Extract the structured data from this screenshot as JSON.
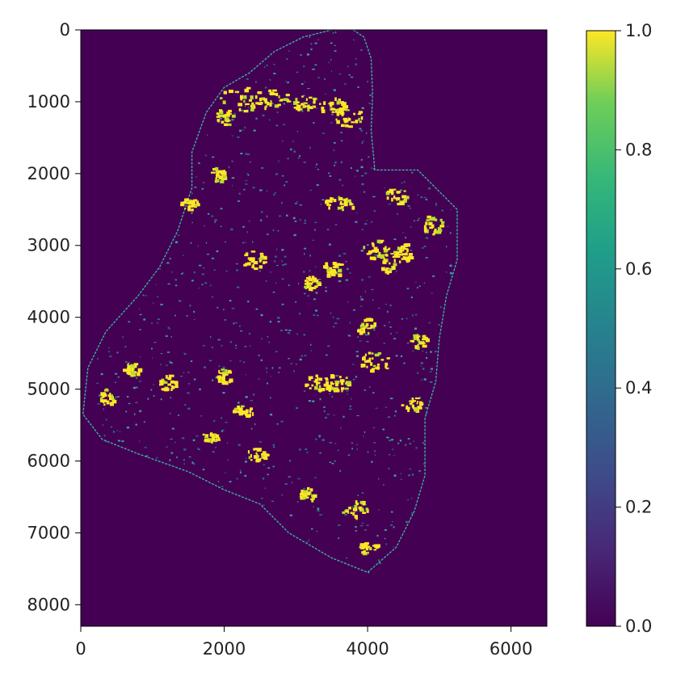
{
  "chart_data": {
    "type": "heatmap",
    "title": "",
    "xlabel": "",
    "ylabel": "",
    "x_range": [
      0,
      6500
    ],
    "y_range": [
      8300,
      0
    ],
    "x_ticks": [
      "0",
      "2000",
      "4000",
      "6000"
    ],
    "y_ticks": [
      "0",
      "1000",
      "2000",
      "3000",
      "4000",
      "5000",
      "6000",
      "7000",
      "8000"
    ],
    "colorbar": {
      "range": [
        0.0,
        1.0
      ],
      "ticks": [
        "0.0",
        "0.2",
        "0.4",
        "0.6",
        "0.8",
        "1.0"
      ],
      "colormap": "viridis"
    },
    "background_value": 0.0,
    "highlight_value": 1.0,
    "colors": {
      "low": "#440154",
      "edge": "#3fb8a4",
      "high": "#fde725"
    },
    "region_outline": [
      [
        3800,
        0
      ],
      [
        3950,
        100
      ],
      [
        4050,
        400
      ],
      [
        4070,
        900
      ],
      [
        4050,
        1400
      ],
      [
        4100,
        1950
      ],
      [
        4700,
        1950
      ],
      [
        4950,
        2200
      ],
      [
        5250,
        2500
      ],
      [
        5250,
        3200
      ],
      [
        5100,
        3700
      ],
      [
        5000,
        4300
      ],
      [
        4950,
        4900
      ],
      [
        4800,
        5400
      ],
      [
        4800,
        6200
      ],
      [
        4650,
        6700
      ],
      [
        4400,
        7200
      ],
      [
        4000,
        7550
      ],
      [
        3500,
        7350
      ],
      [
        2900,
        7000
      ],
      [
        2500,
        6600
      ],
      [
        2000,
        6400
      ],
      [
        1500,
        6150
      ],
      [
        800,
        5900
      ],
      [
        300,
        5700
      ],
      [
        30,
        5350
      ],
      [
        100,
        4700
      ],
      [
        350,
        4200
      ],
      [
        800,
        3700
      ],
      [
        1100,
        3300
      ],
      [
        1350,
        2800
      ],
      [
        1550,
        2200
      ],
      [
        1550,
        1700
      ],
      [
        1750,
        1150
      ],
      [
        2000,
        800
      ],
      [
        2350,
        600
      ],
      [
        2700,
        300
      ],
      [
        3100,
        100
      ],
      [
        3500,
        0
      ]
    ],
    "hotspots": [
      [
        2250,
        950,
        70,
        35
      ],
      [
        2650,
        950,
        55,
        30
      ],
      [
        3100,
        1000,
        35,
        25
      ],
      [
        3500,
        1050,
        40,
        25
      ],
      [
        3700,
        1200,
        45,
        30
      ],
      [
        2000,
        1200,
        30,
        25
      ],
      [
        1900,
        2000,
        25,
        20
      ],
      [
        4400,
        2300,
        35,
        25
      ],
      [
        4900,
        2700,
        30,
        30
      ],
      [
        3600,
        2400,
        45,
        20
      ],
      [
        2400,
        3200,
        35,
        30
      ],
      [
        3500,
        3300,
        30,
        25
      ],
      [
        4300,
        3200,
        30,
        35
      ],
      [
        4500,
        3100,
        25,
        30
      ],
      [
        4100,
        3050,
        45,
        30
      ],
      [
        1500,
        2400,
        25,
        20
      ],
      [
        3950,
        4100,
        30,
        25
      ],
      [
        4100,
        4600,
        45,
        30
      ],
      [
        3550,
        4900,
        40,
        25
      ],
      [
        3300,
        4900,
        40,
        25
      ],
      [
        2000,
        4800,
        25,
        20
      ],
      [
        1200,
        4900,
        25,
        25
      ],
      [
        700,
        4700,
        25,
        20
      ],
      [
        350,
        5100,
        20,
        25
      ],
      [
        2250,
        5300,
        30,
        20
      ],
      [
        1800,
        5650,
        25,
        15
      ],
      [
        4600,
        5200,
        30,
        20
      ],
      [
        3800,
        6650,
        40,
        25
      ],
      [
        4000,
        7200,
        30,
        20
      ],
      [
        3150,
        6450,
        25,
        20
      ],
      [
        2450,
        5900,
        30,
        20
      ],
      [
        4700,
        4300,
        25,
        25
      ],
      [
        3200,
        3500,
        25,
        20
      ]
    ],
    "grid": false,
    "legend": "none"
  }
}
